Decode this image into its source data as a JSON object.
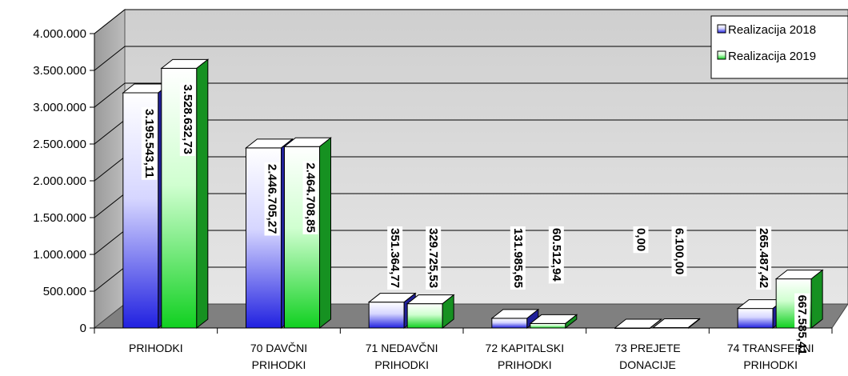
{
  "chart_data": {
    "type": "bar",
    "style": "3d-clustered-column",
    "categories": [
      [
        "PRIHODKI"
      ],
      [
        "70 DAVČNI",
        "PRIHODKI"
      ],
      [
        "71 NEDAVČNI",
        "PRIHODKI"
      ],
      [
        "72 KAPITALSKI",
        "PRIHODKI"
      ],
      [
        "73 PREJETE",
        "DONACIJE"
      ],
      [
        "74 TRANSFERNI",
        "PRIHODKI"
      ]
    ],
    "series": [
      {
        "name": "Realizacija 2018",
        "color": "#2f2fdc",
        "values": [
          3195543.11,
          2446705.27,
          351364.77,
          131985.65,
          0.0,
          265487.42
        ],
        "labels": [
          "3.195.543,11",
          "2.446.705,27",
          "351.364,77",
          "131.985,65",
          "0,00",
          "265.487,42"
        ]
      },
      {
        "name": "Realizacija 2019",
        "color": "#1fcf2f",
        "values": [
          3528632.73,
          2464708.85,
          329725.53,
          60512.94,
          6100.0,
          667585.41
        ],
        "labels": [
          "3.528.632,73",
          "2.464.708,85",
          "329.725,53",
          "60.512,94",
          "6.100,00",
          "667.585,41"
        ]
      }
    ],
    "yticks": [
      "0",
      "500.000",
      "1.000.000",
      "1.500.000",
      "2.000.000",
      "2.500.000",
      "3.000.000",
      "3.500.000",
      "4.000.000"
    ],
    "ylim": [
      0,
      4000000
    ],
    "legend_position": "top-right",
    "grid": true
  }
}
